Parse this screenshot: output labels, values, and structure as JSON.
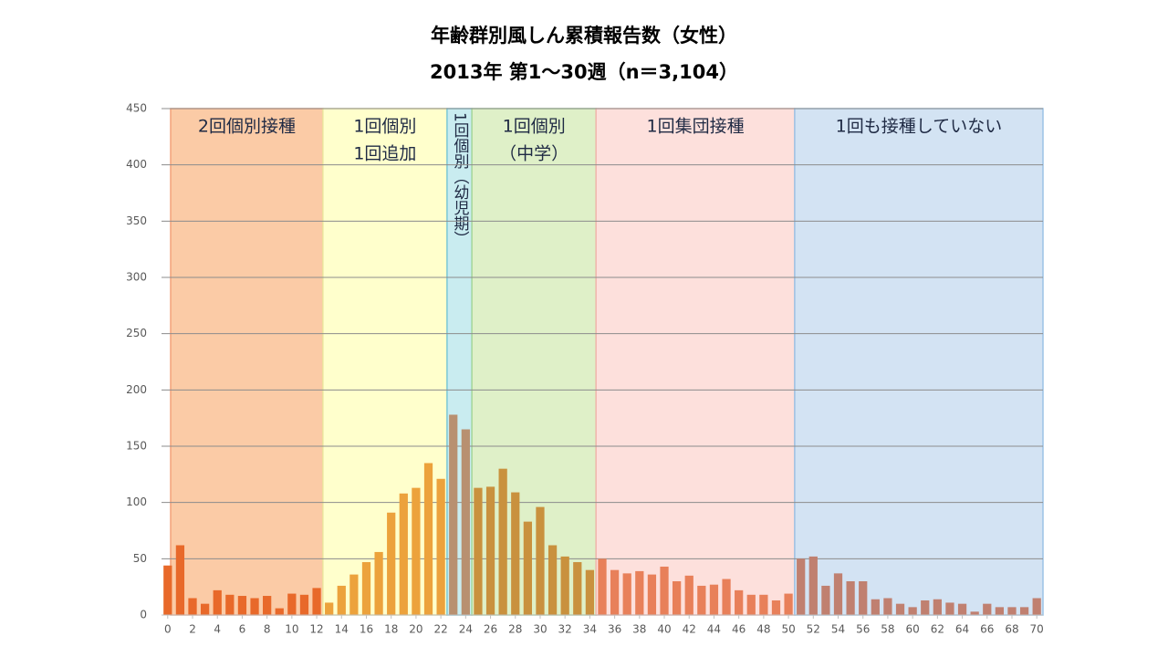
{
  "chart_data": {
    "type": "bar",
    "title": "年齢群別風しん累積報告数（女性）",
    "subtitle": "2013年 第1～30週（n＝3,104）",
    "x": [
      0,
      1,
      2,
      3,
      4,
      5,
      6,
      7,
      8,
      9,
      10,
      11,
      12,
      13,
      14,
      15,
      16,
      17,
      18,
      19,
      20,
      21,
      22,
      23,
      24,
      25,
      26,
      27,
      28,
      29,
      30,
      31,
      32,
      33,
      34,
      35,
      36,
      37,
      38,
      39,
      40,
      41,
      42,
      43,
      44,
      45,
      46,
      47,
      48,
      49,
      50,
      51,
      52,
      53,
      54,
      55,
      56,
      57,
      58,
      59,
      60,
      61,
      62,
      63,
      64,
      65,
      66,
      67,
      68,
      69,
      70
    ],
    "values": [
      44,
      62,
      15,
      10,
      22,
      18,
      17,
      15,
      17,
      6,
      19,
      18,
      24,
      11,
      26,
      36,
      47,
      56,
      91,
      108,
      113,
      135,
      121,
      178,
      165,
      113,
      114,
      130,
      109,
      83,
      96,
      62,
      52,
      47,
      40,
      50,
      40,
      37,
      39,
      36,
      43,
      30,
      35,
      26,
      27,
      32,
      22,
      18,
      18,
      13,
      19,
      50,
      52,
      26,
      37,
      30,
      30,
      14,
      15,
      10,
      7,
      13,
      14,
      11,
      10,
      3,
      10,
      7,
      7,
      7,
      15
    ],
    "xlim": [
      -0.5,
      70.5
    ],
    "xticks": [
      0,
      2,
      4,
      6,
      8,
      10,
      12,
      14,
      16,
      18,
      20,
      22,
      24,
      26,
      28,
      30,
      32,
      34,
      36,
      38,
      40,
      42,
      44,
      46,
      48,
      50,
      52,
      54,
      56,
      58,
      60,
      62,
      64,
      66,
      68,
      70
    ],
    "ylim": [
      0,
      450
    ],
    "yticks": [
      0,
      50,
      100,
      150,
      200,
      250,
      300,
      350,
      400,
      450
    ],
    "grid": true,
    "regions": [
      {
        "label": [
          "2回個別接種"
        ],
        "first": 0,
        "last": 12,
        "color": "#fbcba6",
        "border": "#f4a27a",
        "bar_color": "#e8692a"
      },
      {
        "label": [
          "1回個別",
          "1回追加"
        ],
        "first": 13,
        "last": 22,
        "color": "#ffffcc",
        "border": "#ece6a0",
        "bar_color": "#eca23c"
      },
      {
        "label": [
          "1回個別（幼児期）"
        ],
        "first": 23,
        "last": 24,
        "color": "#c9ecf0",
        "border": "#7cc9d9",
        "bar_color": "#b89070",
        "vertical": true
      },
      {
        "label": [
          "1回個別",
          "（中学）"
        ],
        "first": 25,
        "last": 34,
        "color": "#dff0c8",
        "border": "#a9d89a",
        "bar_color": "#c9913e"
      },
      {
        "label": [
          "1回集団接種"
        ],
        "first": 35,
        "last": 50,
        "color": "#fde0dc",
        "border": "#f2b6ad",
        "bar_color": "#e8805a"
      },
      {
        "label": [
          "1回も接種していない"
        ],
        "first": 51,
        "last": 70,
        "color": "#d3e3f3",
        "border": "#9cc3e6",
        "bar_color": "#c08070"
      }
    ]
  }
}
